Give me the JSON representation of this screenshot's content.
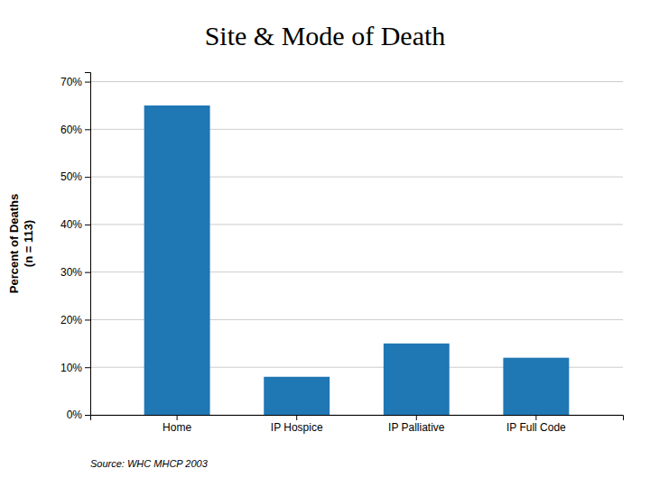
{
  "chart_data": {
    "type": "bar",
    "title": "Site & Mode of Death",
    "categories": [
      "Home",
      "IP Hospice",
      "IP Palliative",
      "IP Full Code"
    ],
    "values": [
      65,
      8,
      15,
      12
    ],
    "ylabel": [
      "Percent of  Deaths",
      "(n = 113)"
    ],
    "ylim": [
      0,
      72
    ],
    "yticks": [
      {
        "value": 0,
        "label": "0%"
      },
      {
        "value": 10,
        "label": "10%"
      },
      {
        "value": 20,
        "label": "20%"
      },
      {
        "value": 30,
        "label": "30%"
      },
      {
        "value": 40,
        "label": "40%"
      },
      {
        "value": 50,
        "label": "50%"
      },
      {
        "value": 60,
        "label": "60%"
      },
      {
        "value": 70,
        "label": "70%"
      }
    ],
    "grid": true,
    "annotations": [
      "Source: WHC MHCP 2003"
    ]
  }
}
